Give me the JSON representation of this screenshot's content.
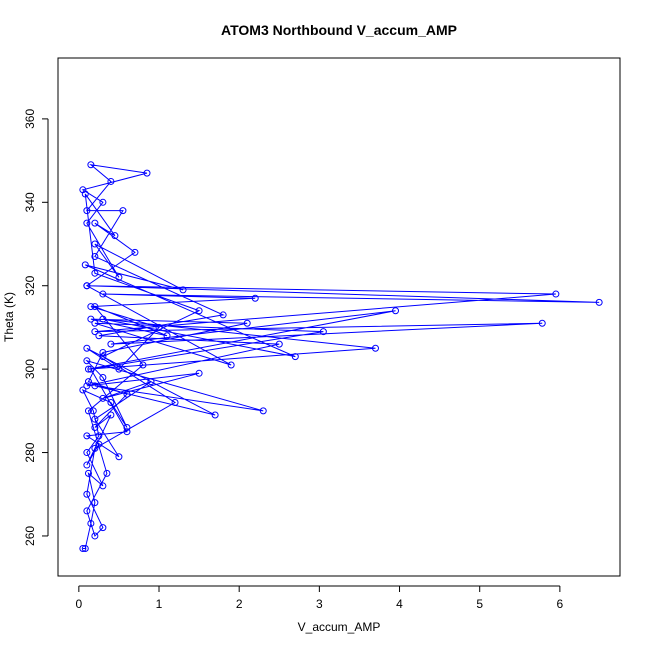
{
  "chart_data": {
    "type": "line",
    "title": "ATOM3 Northbound V_accum_AMP",
    "x_label": "V_accum_AMP",
    "y_label": "Theta (K)",
    "color": "#0000ff",
    "markers": true,
    "xlim": [
      -0.26,
      6.75
    ],
    "ylim": [
      250.4,
      374.6
    ],
    "xticks": [
      0,
      1,
      2,
      3,
      4,
      5,
      6
    ],
    "yticks": [
      260,
      280,
      300,
      320,
      340,
      360
    ],
    "x": [
      0.05,
      0.08,
      0.15,
      0.2,
      0.12,
      0.3,
      0.1,
      0.25,
      0.18,
      0.05,
      0.4,
      0.6,
      0.3,
      0.1,
      2.3,
      0.2,
      1.7,
      0.1,
      0.5,
      1.0,
      0.15,
      2.2,
      0.3,
      6.49,
      0.1,
      5.95,
      0.2,
      5.78,
      0.4,
      3.95,
      0.12,
      3.7,
      0.3,
      2.7,
      0.08,
      1.3,
      0.2,
      0.5,
      0.1,
      0.3,
      0.05,
      0.85,
      0.15,
      0.4,
      0.1,
      0.55,
      0.2,
      1.8,
      0.25,
      2.5,
      0.1,
      1.5,
      0.3,
      0.9,
      0.2,
      0.5,
      0.1,
      0.6,
      0.15,
      3.05,
      0.2,
      1.9,
      0.1,
      0.7,
      0.2,
      0.45,
      0.08,
      0.2,
      1.5,
      0.3,
      1.2,
      0.2,
      0.1,
      0.3,
      0.2,
      0.1,
      0.35,
      0.12,
      0.8,
      0.2,
      1.1,
      0.15,
      2.1,
      0.3,
      0.12,
      0.6,
      0.2,
      0.4,
      0.1,
      0.25
    ],
    "values": [
      257,
      257,
      263,
      268,
      275,
      272,
      280,
      284,
      290,
      295,
      292,
      286,
      298,
      302,
      290,
      296,
      289,
      305,
      300,
      310,
      315,
      317,
      318,
      316,
      320,
      318,
      309,
      311,
      306,
      314,
      300,
      305,
      312,
      303,
      325,
      319,
      330,
      322,
      335,
      340,
      343,
      347,
      349,
      345,
      338,
      338,
      327,
      313,
      308,
      306,
      296,
      299,
      293,
      297,
      288,
      279,
      284,
      285,
      300,
      309,
      311,
      301,
      320,
      328,
      335,
      332,
      342,
      323,
      314,
      303,
      292,
      281,
      270,
      262,
      260,
      266,
      275,
      290,
      301,
      315,
      308,
      312,
      311,
      304,
      297,
      294,
      286,
      289,
      277,
      282
    ]
  }
}
